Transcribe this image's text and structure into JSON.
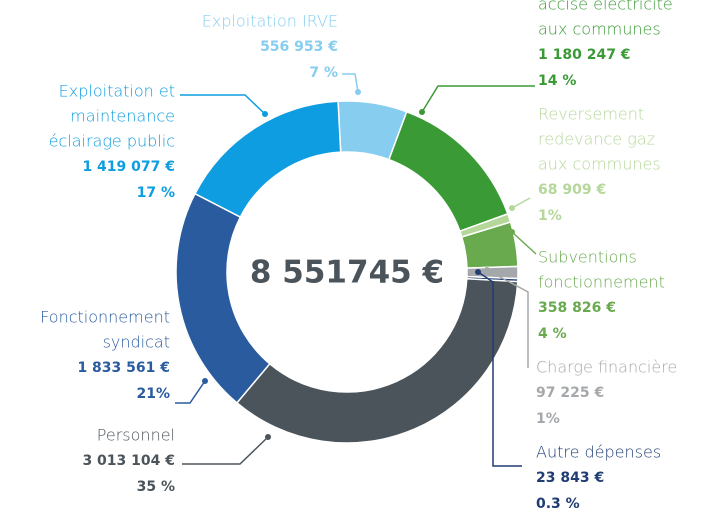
{
  "chart_data": {
    "type": "donut",
    "center_label": "8 551745 €",
    "series": [
      {
        "label": [
          "Exploitation IRVE"
        ],
        "color": "#86cdf0",
        "values": [
          556953
        ],
        "value_labels": [
          "556 953 €"
        ],
        "percents": [
          7
        ],
        "percent_labels": [
          "7 %"
        ]
      },
      {
        "label": [
          "accise électricité",
          "aux communes"
        ],
        "color": "#3a9a35",
        "values": [
          1180247
        ],
        "value_labels": [
          "1 180 247 €"
        ],
        "percents": [
          14
        ],
        "percent_labels": [
          "14 %"
        ]
      },
      {
        "label": [
          "Reversement",
          "redevance gaz",
          "aux communes"
        ],
        "color": "#b5d79a",
        "values": [
          68909
        ],
        "value_labels": [
          "68 909 €"
        ],
        "percents": [
          1
        ],
        "percent_labels": [
          "1%"
        ]
      },
      {
        "label": [
          "Subventions",
          "fonctionnement"
        ],
        "color": "#6aaa4f",
        "values": [
          358826
        ],
        "value_labels": [
          "358 826 €"
        ],
        "percents": [
          4
        ],
        "percent_labels": [
          "4 %"
        ]
      },
      {
        "label": [
          "Charge financière"
        ],
        "color": "#a5a8aa",
        "values": [
          97225
        ],
        "value_labels": [
          "97 225 €"
        ],
        "percents": [
          1
        ],
        "percent_labels": [
          "1%"
        ]
      },
      {
        "label": [
          "Autre dépenses"
        ],
        "color": "#1f3c73",
        "values": [
          23843
        ],
        "value_labels": [
          "23 843 €"
        ],
        "percents": [
          0.3
        ],
        "percent_labels": [
          "0.3 %"
        ]
      },
      {
        "label": [
          "Personnel"
        ],
        "color": "#4b545a",
        "values": [
          3013104
        ],
        "value_labels": [
          "3 013 104 €"
        ],
        "percents": [
          35
        ],
        "percent_labels": [
          "35 %"
        ]
      },
      {
        "label": [
          "Fonctionnement",
          "syndicat"
        ],
        "color": "#2a5b9e",
        "values": [
          1833561
        ],
        "value_labels": [
          "1 833 561 €"
        ],
        "percents": [
          21
        ],
        "percent_labels": [
          "21%"
        ]
      },
      {
        "label": [
          "Exploitation et",
          "maintenance",
          "éclairage public"
        ],
        "color": "#0e9de0",
        "values": [
          1419077
        ],
        "value_labels": [
          "1 419 077 €"
        ],
        "percents": [
          17
        ],
        "percent_labels": [
          "17 %"
        ]
      }
    ]
  }
}
